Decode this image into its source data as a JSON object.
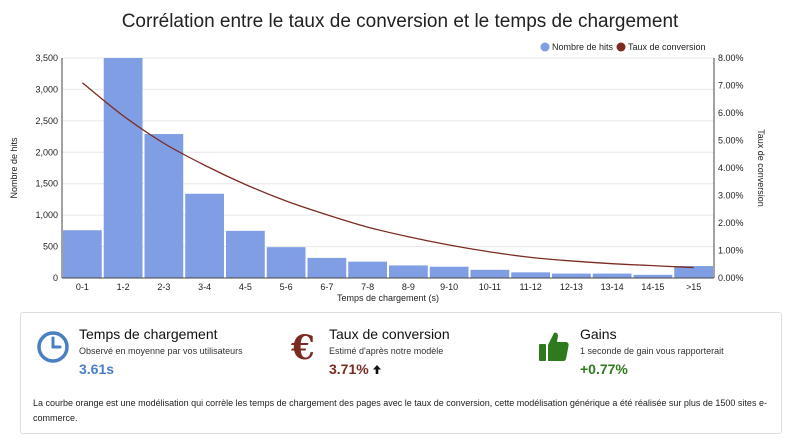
{
  "chart_data": {
    "type": "bar",
    "title": "Corrélation entre le taux de conversion et le temps de chargement",
    "xlabel": "Temps de chargement (s)",
    "ylabel": "Nombre de hits",
    "y2label": "Taux de conversion",
    "categories": [
      "0-1",
      "1-2",
      "2-3",
      "3-4",
      "4-5",
      "5-6",
      "6-7",
      "7-8",
      "8-9",
      "9-10",
      "10-11",
      "11-12",
      "12-13",
      "13-14",
      "14-15",
      ">15"
    ],
    "series": [
      {
        "name": "Nombre de hits",
        "type": "bar",
        "axis": "left",
        "color": "#7f9ee3",
        "values": [
          760,
          3520,
          2290,
          1340,
          750,
          490,
          320,
          260,
          200,
          180,
          130,
          90,
          70,
          70,
          50,
          190
        ]
      },
      {
        "name": "Taux de conversion",
        "type": "line",
        "axis": "right",
        "color": "#7b2b22",
        "values": [
          7.1,
          5.9,
          4.9,
          4.1,
          3.4,
          2.8,
          2.3,
          1.85,
          1.5,
          1.2,
          0.95,
          0.75,
          0.62,
          0.52,
          0.45,
          0.38
        ]
      }
    ],
    "ylim": [
      0,
      3500
    ],
    "yticks": [
      "0",
      "500",
      "1,000",
      "1,500",
      "2,000",
      "2,500",
      "3,000",
      "3,500"
    ],
    "y2lim": [
      0,
      8
    ],
    "y2ticks": [
      "0.00%",
      "1.00%",
      "2.00%",
      "3.00%",
      "4.00%",
      "5.00%",
      "6.00%",
      "7.00%",
      "8.00%"
    ],
    "grid": true,
    "legend_position": "top-right"
  },
  "kpis": [
    {
      "title": "Temps de chargement",
      "subtitle": "Observé en moyenne par vos utilisateurs",
      "value": "3.61s",
      "value_color": "#4a7fc1",
      "icon": "clock-icon"
    },
    {
      "title": "Taux de conversion",
      "subtitle": "Estimé d'après notre modèle",
      "value": "3.71%",
      "value_color": "#7b2b22",
      "icon": "euro-icon",
      "trend_icon": "arrow-up-icon"
    },
    {
      "title": "Gains",
      "subtitle": "1 seconde de gain vous rapporterait",
      "value": "+0.77%",
      "value_color": "#2f7a1f",
      "icon": "thumbs-up-icon"
    }
  ],
  "note": "La courbe orange est une modélisation qui corrèle les temps de chargement des pages avec le taux de conversion, cette modélisation générique a été réalisée sur plus de 1500 sites e-commerce."
}
